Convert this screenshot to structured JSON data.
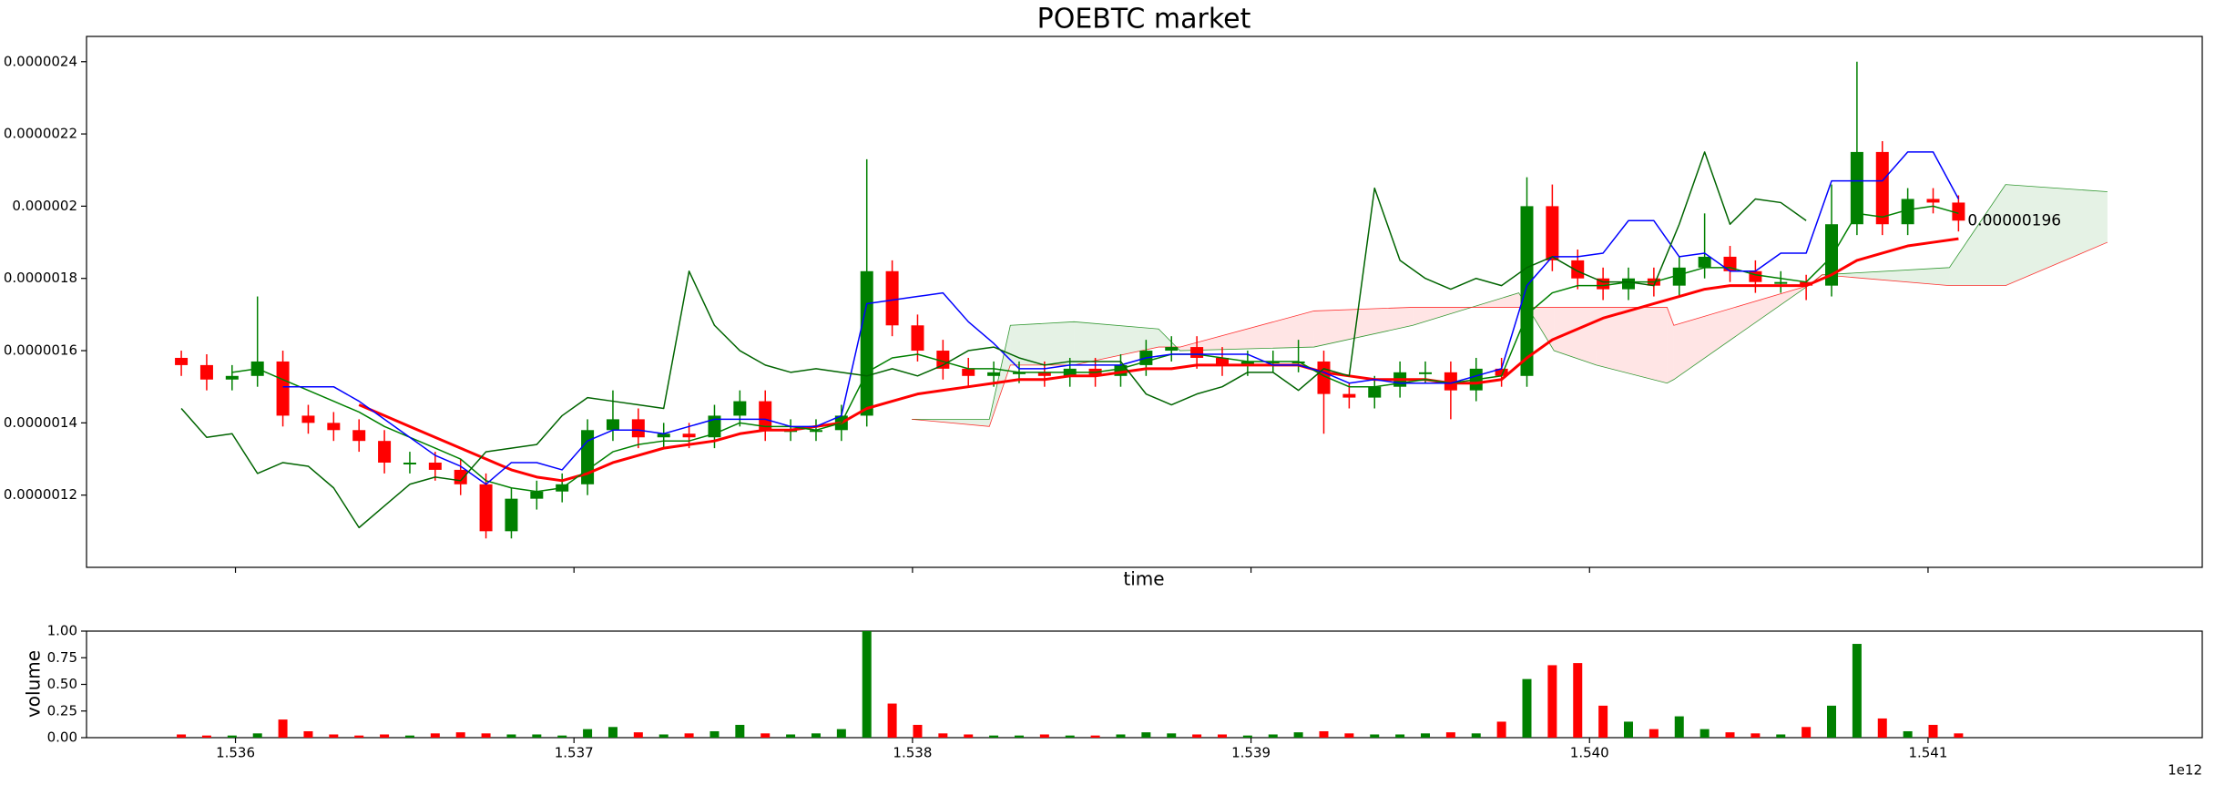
{
  "chart_data": [
    {
      "type": "candlestick",
      "title": "POEBTC market",
      "xlabel": "time",
      "xlim": [
        1535560000000,
        1541810000000
      ],
      "ylim": [
        1e-06,
        2.47e-06
      ],
      "yticks": [
        1.2e-06,
        1.4e-06,
        1.6e-06,
        1.8e-06,
        2e-06,
        2.2e-06,
        2.4e-06
      ],
      "up_color": "#008000",
      "down_color": "#ff0000",
      "annotation": "0.00000196",
      "candles": {
        "x": [
          1535840000000,
          1535915000000,
          1535990000000,
          1536065000000,
          1536140000000,
          1536215000000,
          1536290000000,
          1536365000000,
          1536440000000,
          1536515000000,
          1536590000000,
          1536665000000,
          1536740000000,
          1536815000000,
          1536890000000,
          1536965000000,
          1537040000000,
          1537115000000,
          1537190000000,
          1537265000000,
          1537340000000,
          1537415000000,
          1537490000000,
          1537565000000,
          1537640000000,
          1537715000000,
          1537790000000,
          1537865000000,
          1537940000000,
          1538015000000,
          1538090000000,
          1538165000000,
          1538240000000,
          1538315000000,
          1538390000000,
          1538465000000,
          1538540000000,
          1538615000000,
          1538690000000,
          1538765000000,
          1538840000000,
          1538915000000,
          1538990000000,
          1539065000000,
          1539140000000,
          1539215000000,
          1539290000000,
          1539365000000,
          1539440000000,
          1539515000000,
          1539590000000,
          1539665000000,
          1539740000000,
          1539815000000,
          1539890000000,
          1539965000000,
          1540040000000,
          1540115000000,
          1540190000000,
          1540265000000,
          1540340000000,
          1540415000000,
          1540490000000,
          1540565000000,
          1540640000000,
          1540715000000,
          1540790000000,
          1540865000000,
          1540940000000,
          1541015000000,
          1541090000000
        ],
        "open": [
          1.58e-06,
          1.56e-06,
          1.52e-06,
          1.53e-06,
          1.57e-06,
          1.42e-06,
          1.4e-06,
          1.38e-06,
          1.35e-06,
          1.29e-06,
          1.29e-06,
          1.27e-06,
          1.23e-06,
          1.1e-06,
          1.19e-06,
          1.21e-06,
          1.23e-06,
          1.38e-06,
          1.41e-06,
          1.36e-06,
          1.37e-06,
          1.36e-06,
          1.42e-06,
          1.46e-06,
          1.38e-06,
          1.38e-06,
          1.38e-06,
          1.42e-06,
          1.82e-06,
          1.67e-06,
          1.6e-06,
          1.55e-06,
          1.53e-06,
          1.54e-06,
          1.54e-06,
          1.53e-06,
          1.55e-06,
          1.53e-06,
          1.56e-06,
          1.6e-06,
          1.61e-06,
          1.58e-06,
          1.56e-06,
          1.57e-06,
          1.57e-06,
          1.57e-06,
          1.48e-06,
          1.47e-06,
          1.5e-06,
          1.54e-06,
          1.54e-06,
          1.49e-06,
          1.55e-06,
          1.53e-06,
          2e-06,
          1.85e-06,
          1.8e-06,
          1.77e-06,
          1.8e-06,
          1.78e-06,
          1.83e-06,
          1.86e-06,
          1.82e-06,
          1.79e-06,
          1.79e-06,
          1.78e-06,
          1.95e-06,
          2.15e-06,
          1.95e-06,
          2.02e-06,
          2.01e-06
        ],
        "high": [
          1.6e-06,
          1.59e-06,
          1.56e-06,
          1.75e-06,
          1.6e-06,
          1.45e-06,
          1.43e-06,
          1.41e-06,
          1.38e-06,
          1.32e-06,
          1.32e-06,
          1.3e-06,
          1.26e-06,
          1.22e-06,
          1.24e-06,
          1.26e-06,
          1.41e-06,
          1.49e-06,
          1.44e-06,
          1.4e-06,
          1.4e-06,
          1.45e-06,
          1.49e-06,
          1.49e-06,
          1.41e-06,
          1.41e-06,
          1.45e-06,
          2.13e-06,
          1.85e-06,
          1.7e-06,
          1.63e-06,
          1.58e-06,
          1.57e-06,
          1.57e-06,
          1.57e-06,
          1.58e-06,
          1.58e-06,
          1.59e-06,
          1.63e-06,
          1.64e-06,
          1.64e-06,
          1.61e-06,
          1.6e-06,
          1.6e-06,
          1.63e-06,
          1.6e-06,
          1.51e-06,
          1.53e-06,
          1.57e-06,
          1.57e-06,
          1.57e-06,
          1.58e-06,
          1.58e-06,
          2.08e-06,
          2.06e-06,
          1.88e-06,
          1.83e-06,
          1.83e-06,
          1.83e-06,
          1.86e-06,
          1.98e-06,
          1.89e-06,
          1.85e-06,
          1.82e-06,
          1.81e-06,
          2.06e-06,
          2.4e-06,
          2.18e-06,
          2.05e-06,
          2.05e-06,
          2.03e-06
        ],
        "low": [
          1.53e-06,
          1.49e-06,
          1.49e-06,
          1.5e-06,
          1.39e-06,
          1.37e-06,
          1.35e-06,
          1.32e-06,
          1.26e-06,
          1.26e-06,
          1.24e-06,
          1.2e-06,
          1.08e-06,
          1.08e-06,
          1.16e-06,
          1.18e-06,
          1.2e-06,
          1.35e-06,
          1.33e-06,
          1.33e-06,
          1.33e-06,
          1.33e-06,
          1.39e-06,
          1.35e-06,
          1.35e-06,
          1.35e-06,
          1.35e-06,
          1.39e-06,
          1.64e-06,
          1.57e-06,
          1.52e-06,
          1.5e-06,
          1.5e-06,
          1.51e-06,
          1.5e-06,
          1.5e-06,
          1.5e-06,
          1.5e-06,
          1.53e-06,
          1.57e-06,
          1.55e-06,
          1.53e-06,
          1.53e-06,
          1.54e-06,
          1.54e-06,
          1.37e-06,
          1.44e-06,
          1.44e-06,
          1.47e-06,
          1.51e-06,
          1.41e-06,
          1.46e-06,
          1.5e-06,
          1.5e-06,
          1.82e-06,
          1.77e-06,
          1.74e-06,
          1.74e-06,
          1.75e-06,
          1.75e-06,
          1.8e-06,
          1.79e-06,
          1.76e-06,
          1.76e-06,
          1.74e-06,
          1.75e-06,
          1.92e-06,
          1.92e-06,
          1.92e-06,
          1.98e-06,
          1.93e-06
        ],
        "close": [
          1.56e-06,
          1.52e-06,
          1.53e-06,
          1.57e-06,
          1.42e-06,
          1.4e-06,
          1.38e-06,
          1.35e-06,
          1.29e-06,
          1.29e-06,
          1.27e-06,
          1.23e-06,
          1.1e-06,
          1.19e-06,
          1.21e-06,
          1.23e-06,
          1.38e-06,
          1.41e-06,
          1.36e-06,
          1.37e-06,
          1.36e-06,
          1.42e-06,
          1.46e-06,
          1.38e-06,
          1.38e-06,
          1.38e-06,
          1.42e-06,
          1.82e-06,
          1.67e-06,
          1.6e-06,
          1.55e-06,
          1.53e-06,
          1.54e-06,
          1.54e-06,
          1.53e-06,
          1.55e-06,
          1.53e-06,
          1.56e-06,
          1.6e-06,
          1.61e-06,
          1.58e-06,
          1.56e-06,
          1.57e-06,
          1.57e-06,
          1.57e-06,
          1.48e-06,
          1.47e-06,
          1.5e-06,
          1.54e-06,
          1.54e-06,
          1.49e-06,
          1.55e-06,
          1.53e-06,
          2e-06,
          1.85e-06,
          1.8e-06,
          1.77e-06,
          1.8e-06,
          1.78e-06,
          1.83e-06,
          1.86e-06,
          1.82e-06,
          1.79e-06,
          1.79e-06,
          1.78e-06,
          1.95e-06,
          2.15e-06,
          1.95e-06,
          2.02e-06,
          2.01e-06,
          1.96e-06
        ]
      },
      "lines": [
        {
          "color": "#ff0000",
          "width": 3,
          "values": [
            null,
            null,
            null,
            null,
            null,
            null,
            null,
            1.45e-06,
            1.42e-06,
            1.39e-06,
            1.36e-06,
            1.33e-06,
            1.3e-06,
            1.27e-06,
            1.25e-06,
            1.24e-06,
            1.26e-06,
            1.29e-06,
            1.31e-06,
            1.33e-06,
            1.34e-06,
            1.35e-06,
            1.37e-06,
            1.38e-06,
            1.38e-06,
            1.39e-06,
            1.4e-06,
            1.44e-06,
            1.46e-06,
            1.48e-06,
            1.49e-06,
            1.5e-06,
            1.51e-06,
            1.52e-06,
            1.52e-06,
            1.53e-06,
            1.53e-06,
            1.54e-06,
            1.55e-06,
            1.55e-06,
            1.56e-06,
            1.56e-06,
            1.56e-06,
            1.56e-06,
            1.56e-06,
            1.54e-06,
            1.53e-06,
            1.52e-06,
            1.52e-06,
            1.52e-06,
            1.51e-06,
            1.51e-06,
            1.52e-06,
            1.58e-06,
            1.63e-06,
            1.66e-06,
            1.69e-06,
            1.71e-06,
            1.73e-06,
            1.75e-06,
            1.77e-06,
            1.78e-06,
            1.78e-06,
            1.78e-06,
            1.78e-06,
            1.81e-06,
            1.85e-06,
            1.87e-06,
            1.89e-06,
            1.9e-06,
            1.91e-06
          ]
        },
        {
          "color": "#008000",
          "width": 1.5,
          "values": [
            null,
            null,
            1.54e-06,
            1.55e-06,
            1.52e-06,
            1.49e-06,
            1.46e-06,
            1.43e-06,
            1.39e-06,
            1.36e-06,
            1.33e-06,
            1.3e-06,
            1.24e-06,
            1.22e-06,
            1.21e-06,
            1.22e-06,
            1.27e-06,
            1.32e-06,
            1.34e-06,
            1.35e-06,
            1.35e-06,
            1.37e-06,
            1.4e-06,
            1.39e-06,
            1.39e-06,
            1.38e-06,
            1.4e-06,
            1.54e-06,
            1.58e-06,
            1.59e-06,
            1.57e-06,
            1.55e-06,
            1.55e-06,
            1.54e-06,
            1.54e-06,
            1.54e-06,
            1.54e-06,
            1.55e-06,
            1.57e-06,
            1.59e-06,
            1.59e-06,
            1.58e-06,
            1.57e-06,
            1.57e-06,
            1.57e-06,
            1.53e-06,
            1.5e-06,
            1.5e-06,
            1.51e-06,
            1.52e-06,
            1.51e-06,
            1.52e-06,
            1.53e-06,
            1.7e-06,
            1.76e-06,
            1.78e-06,
            1.78e-06,
            1.79e-06,
            1.79e-06,
            1.81e-06,
            1.83e-06,
            1.83e-06,
            1.81e-06,
            1.8e-06,
            1.79e-06,
            1.86e-06,
            1.98e-06,
            1.97e-06,
            1.99e-06,
            2e-06,
            1.98e-06
          ]
        },
        {
          "color": "#0000ff",
          "width": 1.5,
          "values": [
            null,
            null,
            null,
            null,
            1.5e-06,
            1.5e-06,
            1.5e-06,
            1.46e-06,
            1.41e-06,
            1.36e-06,
            1.31e-06,
            1.28e-06,
            1.23e-06,
            1.29e-06,
            1.29e-06,
            1.27e-06,
            1.35e-06,
            1.38e-06,
            1.38e-06,
            1.37e-06,
            1.39e-06,
            1.41e-06,
            1.41e-06,
            1.41e-06,
            1.39e-06,
            1.39e-06,
            1.42e-06,
            1.73e-06,
            1.74e-06,
            1.75e-06,
            1.76e-06,
            1.68e-06,
            1.62e-06,
            1.55e-06,
            1.55e-06,
            1.56e-06,
            1.56e-06,
            1.56e-06,
            1.58e-06,
            1.59e-06,
            1.59e-06,
            1.59e-06,
            1.59e-06,
            1.56e-06,
            1.56e-06,
            1.54e-06,
            1.51e-06,
            1.52e-06,
            1.51e-06,
            1.51e-06,
            1.51e-06,
            1.53e-06,
            1.55e-06,
            1.78e-06,
            1.86e-06,
            1.86e-06,
            1.87e-06,
            1.96e-06,
            1.96e-06,
            1.86e-06,
            1.87e-06,
            1.82e-06,
            1.82e-06,
            1.87e-06,
            1.87e-06,
            2.07e-06,
            2.07e-06,
            2.07e-06,
            2.15e-06,
            2.15e-06,
            2.02e-06
          ]
        },
        {
          "color": "#006400",
          "width": 1.5,
          "values": [
            1.44e-06,
            1.36e-06,
            1.37e-06,
            1.26e-06,
            1.29e-06,
            1.28e-06,
            1.22e-06,
            1.11e-06,
            1.17e-06,
            1.23e-06,
            1.25e-06,
            1.24e-06,
            1.32e-06,
            1.33e-06,
            1.34e-06,
            1.42e-06,
            1.47e-06,
            1.46e-06,
            1.45e-06,
            1.44e-06,
            1.82e-06,
            1.67e-06,
            1.6e-06,
            1.56e-06,
            1.54e-06,
            1.55e-06,
            1.54e-06,
            1.53e-06,
            1.55e-06,
            1.53e-06,
            1.56e-06,
            1.6e-06,
            1.61e-06,
            1.58e-06,
            1.56e-06,
            1.57e-06,
            1.57e-06,
            1.57e-06,
            1.48e-06,
            1.45e-06,
            1.48e-06,
            1.5e-06,
            1.54e-06,
            1.54e-06,
            1.49e-06,
            1.55e-06,
            1.53e-06,
            2.05e-06,
            1.85e-06,
            1.8e-06,
            1.77e-06,
            1.8e-06,
            1.78e-06,
            1.83e-06,
            1.86e-06,
            1.82e-06,
            1.79e-06,
            1.79e-06,
            1.78e-06,
            1.95e-06,
            2.15e-06,
            1.95e-06,
            2.02e-06,
            2.01e-06,
            1.96e-06,
            null,
            null,
            null,
            null,
            null,
            null
          ]
        }
      ],
      "cloud": {
        "up_color": "#008000",
        "down_color": "#ff0000",
        "x": [
          1537998000000,
          1538227000000,
          1538289000000,
          1538477000000,
          1538727000000,
          1538790000000,
          1539186000000,
          1539478000000,
          1539791000000,
          1539895000000,
          1540020000000,
          1540229000000,
          1540249000000,
          1540646000000,
          1540687000000,
          1541063000000,
          1541229000000,
          1541530000000
        ],
        "span_a": [
          1.41e-06,
          1.41e-06,
          1.67e-06,
          1.68e-06,
          1.66e-06,
          1.6e-06,
          1.61e-06,
          1.67e-06,
          1.76e-06,
          1.6e-06,
          1.56e-06,
          1.51e-06,
          1.52e-06,
          1.78e-06,
          1.81e-06,
          1.83e-06,
          2.06e-06,
          2.04e-06
        ],
        "span_b": [
          1.41e-06,
          1.39e-06,
          1.56e-06,
          1.56e-06,
          1.61e-06,
          1.61e-06,
          1.71e-06,
          1.72e-06,
          1.72e-06,
          1.72e-06,
          1.72e-06,
          1.72e-06,
          1.67e-06,
          1.78e-06,
          1.81e-06,
          1.78e-06,
          1.78e-06,
          1.9e-06
        ]
      }
    },
    {
      "type": "bar",
      "ylabel": "volume",
      "x_offset_label": "1e12",
      "xlim": [
        1535560000000,
        1541810000000
      ],
      "ylim": [
        0,
        1
      ],
      "xticks": [
        {
          "value": 1536000000000,
          "label": "1.536"
        },
        {
          "value": 1537000000000,
          "label": "1.537"
        },
        {
          "value": 1538000000000,
          "label": "1.538"
        },
        {
          "value": 1539000000000,
          "label": "1.539"
        },
        {
          "value": 1540000000000,
          "label": "1.540"
        },
        {
          "value": 1541000000000,
          "label": "1.541"
        }
      ],
      "yticks": [
        {
          "value": 0,
          "label": "0.00"
        },
        {
          "value": 0.25,
          "label": "0.25"
        },
        {
          "value": 0.5,
          "label": "0.50"
        },
        {
          "value": 0.75,
          "label": "0.75"
        },
        {
          "value": 1,
          "label": "1.00"
        }
      ],
      "values": [
        0.03,
        0.02,
        0.02,
        0.04,
        0.17,
        0.06,
        0.03,
        0.02,
        0.03,
        0.02,
        0.04,
        0.05,
        0.04,
        0.03,
        0.03,
        0.02,
        0.08,
        0.1,
        0.05,
        0.03,
        0.04,
        0.06,
        0.12,
        0.04,
        0.03,
        0.04,
        0.08,
        1.0,
        0.32,
        0.12,
        0.04,
        0.03,
        0.02,
        0.02,
        0.03,
        0.02,
        0.02,
        0.03,
        0.05,
        0.04,
        0.03,
        0.03,
        0.02,
        0.03,
        0.05,
        0.06,
        0.04,
        0.03,
        0.03,
        0.04,
        0.05,
        0.04,
        0.15,
        0.55,
        0.68,
        0.7,
        0.3,
        0.15,
        0.08,
        0.2,
        0.08,
        0.05,
        0.04,
        0.03,
        0.1,
        0.3,
        0.88,
        0.18,
        0.06,
        0.12,
        0.04
      ]
    }
  ]
}
